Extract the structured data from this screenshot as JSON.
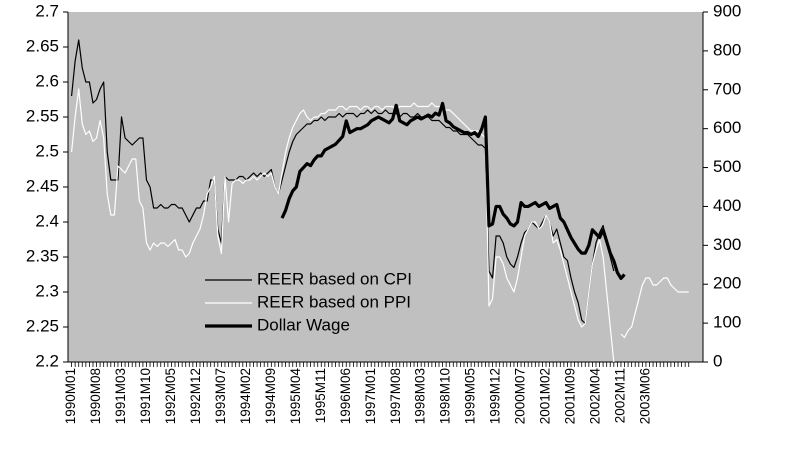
{
  "chart_data": {
    "type": "line",
    "categories": [
      "1990M01",
      null,
      null,
      null,
      null,
      null,
      null,
      "1990M08",
      null,
      null,
      null,
      null,
      null,
      null,
      "1991M03",
      null,
      null,
      null,
      null,
      null,
      null,
      "1991M10",
      null,
      null,
      null,
      null,
      null,
      null,
      "1992M05",
      null,
      null,
      null,
      null,
      null,
      null,
      "1992M12",
      null,
      null,
      null,
      null,
      null,
      null,
      "1993M07",
      null,
      null,
      null,
      null,
      null,
      null,
      "1994M02",
      null,
      null,
      null,
      null,
      null,
      null,
      "1994M09",
      null,
      null,
      null,
      null,
      null,
      null,
      "1995M04",
      null,
      null,
      null,
      null,
      null,
      null,
      "1995M11",
      null,
      null,
      null,
      null,
      null,
      null,
      "1996M06",
      null,
      null,
      null,
      null,
      null,
      null,
      "1997M01",
      null,
      null,
      null,
      null,
      null,
      null,
      "1997M08",
      null,
      null,
      null,
      null,
      null,
      null,
      "1998M03",
      null,
      null,
      null,
      null,
      null,
      null,
      "1998M10",
      null,
      null,
      null,
      null,
      null,
      null,
      "1999M05",
      null,
      null,
      null,
      null,
      null,
      null,
      "1999M12",
      null,
      null,
      null,
      null,
      null,
      null,
      "2000M07",
      null,
      null,
      null,
      null,
      null,
      null,
      "2001M02",
      null,
      null,
      null,
      null,
      null,
      null,
      "2001M09",
      null,
      null,
      null,
      null,
      null,
      null,
      "2002M04",
      null,
      null,
      null,
      null,
      null,
      null,
      "2002M11",
      null,
      null,
      null,
      null,
      null,
      null,
      "2003M06",
      null,
      null,
      null,
      null,
      null,
      null,
      null,
      null,
      null,
      null,
      null,
      null
    ],
    "series": [
      {
        "name": "REER based on CPI",
        "color": "#000000",
        "line_width": 1.2,
        "values": [
          2.58,
          2.63,
          2.66,
          2.62,
          2.6,
          2.6,
          2.57,
          2.575,
          2.59,
          2.6,
          2.5,
          2.46,
          2.46,
          2.46,
          2.55,
          2.52,
          2.515,
          2.51,
          2.515,
          2.52,
          2.52,
          2.46,
          2.45,
          2.42,
          2.42,
          2.425,
          2.42,
          2.42,
          2.425,
          2.425,
          2.42,
          2.42,
          2.41,
          2.4,
          2.41,
          2.42,
          2.42,
          2.43,
          2.43,
          2.46,
          2.46,
          2.39,
          2.37,
          2.465,
          2.46,
          2.46,
          2.46,
          2.465,
          2.465,
          2.46,
          2.465,
          2.47,
          2.465,
          2.47,
          2.465,
          2.47,
          2.475,
          2.45,
          2.44,
          2.46,
          2.48,
          2.5,
          2.515,
          2.525,
          2.53,
          2.535,
          2.54,
          2.54,
          2.545,
          2.545,
          2.55,
          2.545,
          2.55,
          2.55,
          2.55,
          2.555,
          2.55,
          2.555,
          2.555,
          2.555,
          2.55,
          2.555,
          2.555,
          2.56,
          2.555,
          2.56,
          2.555,
          2.555,
          2.56,
          2.555,
          2.555,
          2.555,
          2.55,
          2.555,
          2.555,
          2.55,
          2.55,
          2.555,
          2.55,
          2.55,
          2.55,
          2.545,
          2.545,
          2.545,
          2.54,
          2.535,
          2.535,
          2.53,
          2.53,
          2.525,
          2.525,
          2.525,
          2.52,
          2.515,
          2.51,
          2.51,
          2.505,
          2.33,
          2.32,
          2.38,
          2.38,
          2.37,
          2.35,
          2.34,
          2.335,
          2.35,
          2.37,
          2.385,
          2.39,
          2.4,
          2.395,
          2.39,
          2.4,
          2.41,
          2.4,
          2.38,
          2.39,
          2.37,
          2.35,
          2.345,
          2.32,
          2.3,
          2.285,
          2.26,
          2.255,
          2.3,
          2.34,
          2.37,
          2.385,
          2.395,
          2.37,
          2.35,
          2.33,
          null,
          null,
          null,
          null,
          null,
          null,
          null,
          null,
          null,
          null,
          null,
          null,
          null,
          null,
          null,
          null,
          null,
          null,
          null,
          null,
          null
        ]
      },
      {
        "name": "REER based on PPI",
        "color": "#ffffff",
        "line_width": 1.2,
        "values": [
          2.5,
          2.55,
          2.59,
          2.54,
          2.525,
          2.53,
          2.515,
          2.52,
          2.545,
          2.52,
          2.44,
          2.41,
          2.41,
          2.48,
          2.475,
          2.47,
          2.48,
          2.49,
          2.49,
          2.43,
          2.42,
          2.37,
          2.36,
          2.37,
          2.365,
          2.37,
          2.37,
          2.365,
          2.37,
          2.375,
          2.36,
          2.36,
          2.35,
          2.355,
          2.37,
          2.38,
          2.39,
          2.41,
          2.44,
          2.45,
          2.465,
          2.38,
          2.355,
          2.465,
          2.4,
          2.455,
          2.46,
          2.46,
          2.455,
          2.46,
          2.46,
          2.465,
          2.46,
          2.465,
          2.47,
          2.465,
          2.47,
          2.45,
          2.44,
          2.47,
          2.5,
          2.52,
          2.535,
          2.545,
          2.555,
          2.56,
          2.55,
          2.545,
          2.55,
          2.55,
          2.555,
          2.555,
          2.56,
          2.56,
          2.56,
          2.565,
          2.565,
          2.56,
          2.565,
          2.565,
          2.565,
          2.56,
          2.565,
          2.565,
          2.56,
          2.565,
          2.565,
          2.56,
          2.565,
          2.565,
          2.565,
          2.56,
          2.565,
          2.565,
          2.565,
          2.565,
          2.57,
          2.565,
          2.565,
          2.565,
          2.565,
          2.57,
          2.565,
          2.565,
          2.565,
          2.56,
          2.56,
          2.555,
          2.55,
          2.545,
          2.54,
          2.535,
          2.53,
          2.53,
          2.53,
          2.525,
          2.52,
          2.28,
          2.29,
          2.35,
          2.35,
          2.34,
          2.32,
          2.31,
          2.3,
          2.32,
          2.35,
          2.38,
          2.39,
          2.4,
          2.4,
          2.39,
          2.395,
          2.41,
          2.4,
          2.37,
          2.375,
          2.36,
          2.34,
          2.32,
          2.3,
          2.28,
          2.26,
          2.25,
          2.255,
          2.3,
          2.34,
          2.36,
          2.375,
          2.35,
          2.3,
          2.25,
          2.2,
          null,
          2.24,
          2.235,
          2.245,
          2.25,
          2.27,
          2.29,
          2.31,
          2.32,
          2.32,
          2.31,
          2.31,
          2.315,
          2.32,
          2.32,
          2.31,
          2.305,
          2.3,
          2.3,
          2.3,
          2.3
        ]
      },
      {
        "name": "Dollar Wage",
        "color": "#000000",
        "line_width": 3.2,
        "axis": "y2",
        "values": [
          null,
          null,
          null,
          null,
          null,
          null,
          null,
          null,
          null,
          null,
          null,
          null,
          null,
          null,
          null,
          null,
          null,
          null,
          null,
          null,
          null,
          null,
          null,
          null,
          null,
          null,
          null,
          null,
          null,
          null,
          null,
          null,
          null,
          null,
          null,
          null,
          null,
          null,
          null,
          null,
          null,
          null,
          null,
          null,
          null,
          null,
          null,
          null,
          null,
          null,
          null,
          null,
          null,
          null,
          null,
          null,
          null,
          null,
          null,
          370,
          390,
          420,
          440,
          450,
          490,
          500,
          510,
          505,
          520,
          530,
          530,
          545,
          550,
          555,
          560,
          570,
          580,
          620,
          590,
          595,
          600,
          600,
          605,
          610,
          620,
          625,
          630,
          625,
          620,
          615,
          625,
          660,
          620,
          615,
          610,
          620,
          625,
          630,
          625,
          630,
          635,
          630,
          640,
          635,
          665,
          620,
          615,
          605,
          600,
          595,
          590,
          590,
          585,
          590,
          580,
          600,
          630,
          350,
          355,
          400,
          400,
          380,
          370,
          355,
          350,
          360,
          410,
          400,
          400,
          405,
          410,
          400,
          405,
          410,
          395,
          400,
          405,
          370,
          360,
          340,
          320,
          305,
          290,
          280,
          280,
          300,
          340,
          330,
          320,
          340,
          310,
          280,
          260,
          230,
          215,
          225,
          null,
          null,
          null,
          null,
          null,
          null,
          null,
          null,
          null,
          null,
          null,
          null,
          null,
          null,
          null,
          null,
          null,
          null
        ]
      }
    ],
    "ylim": [
      2.2,
      2.7
    ],
    "yticks": [
      2.2,
      2.25,
      2.3,
      2.35,
      2.4,
      2.45,
      2.5,
      2.55,
      2.6,
      2.65,
      2.7
    ],
    "y2lim": [
      0,
      900
    ],
    "y2ticks": [
      0,
      100,
      200,
      300,
      400,
      500,
      600,
      700,
      800,
      900
    ],
    "plot_background": "#c0c0c0",
    "grid": false,
    "legend": "lower left"
  }
}
